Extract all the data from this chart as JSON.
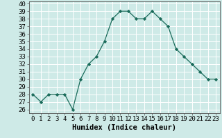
{
  "x": [
    0,
    1,
    2,
    3,
    4,
    5,
    6,
    7,
    8,
    9,
    10,
    11,
    12,
    13,
    14,
    15,
    16,
    17,
    18,
    19,
    20,
    21,
    22,
    23
  ],
  "y": [
    28,
    27,
    28,
    28,
    28,
    26,
    30,
    32,
    33,
    35,
    38,
    39,
    39,
    38,
    38,
    39,
    38,
    37,
    34,
    33,
    32,
    31,
    30,
    30
  ],
  "title": "",
  "xlabel": "Humidex (Indice chaleur)",
  "ylabel": "",
  "xlim": [
    -0.5,
    23.5
  ],
  "ylim": [
    25.5,
    40.3
  ],
  "line_color": "#1a6b5a",
  "marker": "D",
  "marker_size": 2.2,
  "bg_color": "#ceeae7",
  "grid_color": "#ffffff",
  "tick_label_fontsize": 6.5,
  "xlabel_fontsize": 7.5,
  "yticks": [
    26,
    27,
    28,
    29,
    30,
    31,
    32,
    33,
    34,
    35,
    36,
    37,
    38,
    39,
    40
  ],
  "xticks": [
    0,
    1,
    2,
    3,
    4,
    5,
    6,
    7,
    8,
    9,
    10,
    11,
    12,
    13,
    14,
    15,
    16,
    17,
    18,
    19,
    20,
    21,
    22,
    23
  ]
}
